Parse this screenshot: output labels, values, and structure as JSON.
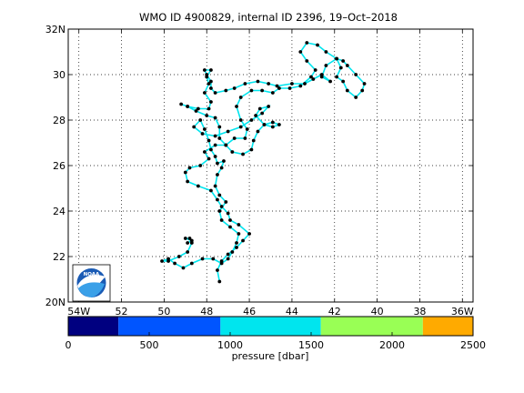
{
  "chart_data": {
    "type": "map-track",
    "title": "WMO ID 4900829, internal ID 2396, 19–Oct–2018",
    "x_ticks": [
      "54W",
      "52",
      "50",
      "48",
      "46",
      "44",
      "42",
      "40",
      "38",
      "36W"
    ],
    "x_tick_values": [
      -54,
      -52,
      -50,
      -48,
      -46,
      -44,
      -42,
      -40,
      -38,
      -36
    ],
    "y_ticks": [
      "20N",
      "22",
      "24",
      "26",
      "28",
      "30",
      "32N"
    ],
    "y_tick_values": [
      20,
      22,
      24,
      26,
      28,
      30,
      32
    ],
    "xlim": [
      -54.5,
      -35.5
    ],
    "ylim": [
      20,
      32
    ],
    "grid": "dotted",
    "track_color": "#00e5ee",
    "point_color": "#000000",
    "track": [
      [
        -47.4,
        20.9
      ],
      [
        -47.5,
        21.4
      ],
      [
        -47.3,
        21.8
      ],
      [
        -47.0,
        22.1
      ],
      [
        -46.6,
        22.4
      ],
      [
        -46.3,
        22.7
      ],
      [
        -46.0,
        23.0
      ],
      [
        -46.5,
        23.4
      ],
      [
        -46.9,
        23.6
      ],
      [
        -47.0,
        23.9
      ],
      [
        -47.3,
        24.2
      ],
      [
        -47.5,
        24.5
      ],
      [
        -47.8,
        24.9
      ],
      [
        -48.4,
        25.1
      ],
      [
        -48.9,
        25.3
      ],
      [
        -49.0,
        25.7
      ],
      [
        -48.8,
        25.9
      ],
      [
        -48.3,
        26.0
      ],
      [
        -47.9,
        26.3
      ],
      [
        -48.1,
        26.6
      ],
      [
        -47.6,
        26.9
      ],
      [
        -47.1,
        26.9
      ],
      [
        -46.7,
        27.2
      ],
      [
        -46.2,
        27.2
      ],
      [
        -46.1,
        27.6
      ],
      [
        -46.4,
        28.0
      ],
      [
        -46.6,
        28.6
      ],
      [
        -46.4,
        29.0
      ],
      [
        -45.9,
        29.3
      ],
      [
        -45.4,
        29.3
      ],
      [
        -44.9,
        29.2
      ],
      [
        -44.6,
        29.4
      ],
      [
        -44.1,
        29.4
      ],
      [
        -43.6,
        29.5
      ],
      [
        -43.1,
        29.9
      ],
      [
        -42.9,
        30.2
      ],
      [
        -43.3,
        30.6
      ],
      [
        -43.6,
        31.0
      ],
      [
        -43.3,
        31.4
      ],
      [
        -42.8,
        31.3
      ],
      [
        -42.4,
        31.0
      ],
      [
        -41.9,
        30.7
      ],
      [
        -41.7,
        30.3
      ],
      [
        -41.9,
        29.9
      ],
      [
        -41.6,
        29.7
      ],
      [
        -41.4,
        29.3
      ],
      [
        -41.0,
        29.0
      ],
      [
        -40.7,
        29.3
      ],
      [
        -40.6,
        29.6
      ],
      [
        -41.0,
        30.0
      ],
      [
        -41.4,
        30.4
      ],
      [
        -41.6,
        30.6
      ],
      [
        -41.9,
        30.7
      ],
      [
        -42.4,
        30.4
      ],
      [
        -42.6,
        29.9
      ],
      [
        -42.2,
        29.7
      ],
      [
        -42.6,
        30.0
      ],
      [
        -43.0,
        29.8
      ],
      [
        -43.4,
        29.6
      ],
      [
        -44.0,
        29.6
      ],
      [
        -44.7,
        29.5
      ],
      [
        -45.1,
        29.6
      ],
      [
        -45.6,
        29.7
      ],
      [
        -46.2,
        29.6
      ],
      [
        -46.7,
        29.4
      ],
      [
        -47.1,
        29.3
      ],
      [
        -47.6,
        29.2
      ],
      [
        -47.8,
        29.4
      ],
      [
        -47.8,
        29.7
      ],
      [
        -48.0,
        30.0
      ],
      [
        -48.1,
        30.2
      ],
      [
        -47.8,
        30.2
      ],
      [
        -48.0,
        29.9
      ],
      [
        -47.9,
        29.6
      ],
      [
        -48.1,
        29.2
      ],
      [
        -47.8,
        28.8
      ],
      [
        -47.9,
        28.5
      ],
      [
        -48.4,
        28.5
      ],
      [
        -48.9,
        28.6
      ],
      [
        -49.2,
        28.7
      ],
      [
        -48.9,
        28.6
      ],
      [
        -48.5,
        28.4
      ],
      [
        -48.0,
        28.2
      ],
      [
        -47.6,
        28.1
      ],
      [
        -47.4,
        27.7
      ],
      [
        -47.4,
        27.2
      ],
      [
        -47.1,
        26.9
      ],
      [
        -46.8,
        26.6
      ],
      [
        -46.3,
        26.5
      ],
      [
        -45.9,
        26.7
      ],
      [
        -45.8,
        27.1
      ],
      [
        -45.6,
        27.5
      ],
      [
        -45.3,
        27.8
      ],
      [
        -44.9,
        27.9
      ],
      [
        -44.6,
        27.8
      ],
      [
        -44.9,
        27.7
      ],
      [
        -45.3,
        27.8
      ],
      [
        -45.7,
        28.2
      ],
      [
        -45.5,
        28.5
      ],
      [
        -45.1,
        28.6
      ],
      [
        -45.4,
        28.3
      ],
      [
        -45.9,
        28.0
      ],
      [
        -46.4,
        27.7
      ],
      [
        -47.0,
        27.5
      ],
      [
        -47.6,
        27.3
      ],
      [
        -48.2,
        27.4
      ],
      [
        -48.6,
        27.7
      ],
      [
        -48.3,
        28.0
      ],
      [
        -48.1,
        27.6
      ],
      [
        -47.9,
        27.1
      ],
      [
        -47.8,
        26.7
      ],
      [
        -47.6,
        26.4
      ],
      [
        -47.5,
        26.1
      ],
      [
        -47.2,
        26.2
      ],
      [
        -47.3,
        25.9
      ],
      [
        -47.5,
        25.6
      ],
      [
        -47.6,
        25.1
      ],
      [
        -47.4,
        24.7
      ],
      [
        -47.1,
        24.4
      ],
      [
        -47.4,
        24.0
      ],
      [
        -47.3,
        23.6
      ],
      [
        -46.9,
        23.3
      ],
      [
        -46.5,
        23.0
      ],
      [
        -46.6,
        22.6
      ],
      [
        -46.8,
        22.2
      ],
      [
        -47.0,
        21.9
      ],
      [
        -47.3,
        21.7
      ],
      [
        -47.7,
        21.9
      ],
      [
        -48.2,
        21.9
      ],
      [
        -48.7,
        21.7
      ],
      [
        -49.1,
        21.5
      ],
      [
        -49.5,
        21.7
      ],
      [
        -49.8,
        21.9
      ],
      [
        -50.1,
        21.8
      ],
      [
        -49.8,
        21.8
      ],
      [
        -49.3,
        22.0
      ],
      [
        -48.9,
        22.2
      ],
      [
        -48.7,
        22.6
      ],
      [
        -48.8,
        22.8
      ],
      [
        -49.0,
        22.8
      ],
      [
        -48.7,
        22.7
      ],
      [
        -48.9,
        22.6
      ]
    ]
  },
  "colorbar": {
    "label": "pressure [dbar]",
    "ticks": [
      "0",
      "500",
      "1000",
      "1500",
      "2000",
      "2500"
    ],
    "range": [
      0,
      2500
    ],
    "bands": [
      {
        "from": 0,
        "to": 310,
        "color": "#000080"
      },
      {
        "from": 310,
        "to": 940,
        "color": "#0055ff"
      },
      {
        "from": 940,
        "to": 1560,
        "color": "#00e5ee"
      },
      {
        "from": 1560,
        "to": 2190,
        "color": "#99ff55"
      },
      {
        "from": 2190,
        "to": 2500,
        "color": "#ffaa00"
      }
    ]
  },
  "logo": {
    "icon": "noaa-logo-icon",
    "text": "NOAA"
  }
}
